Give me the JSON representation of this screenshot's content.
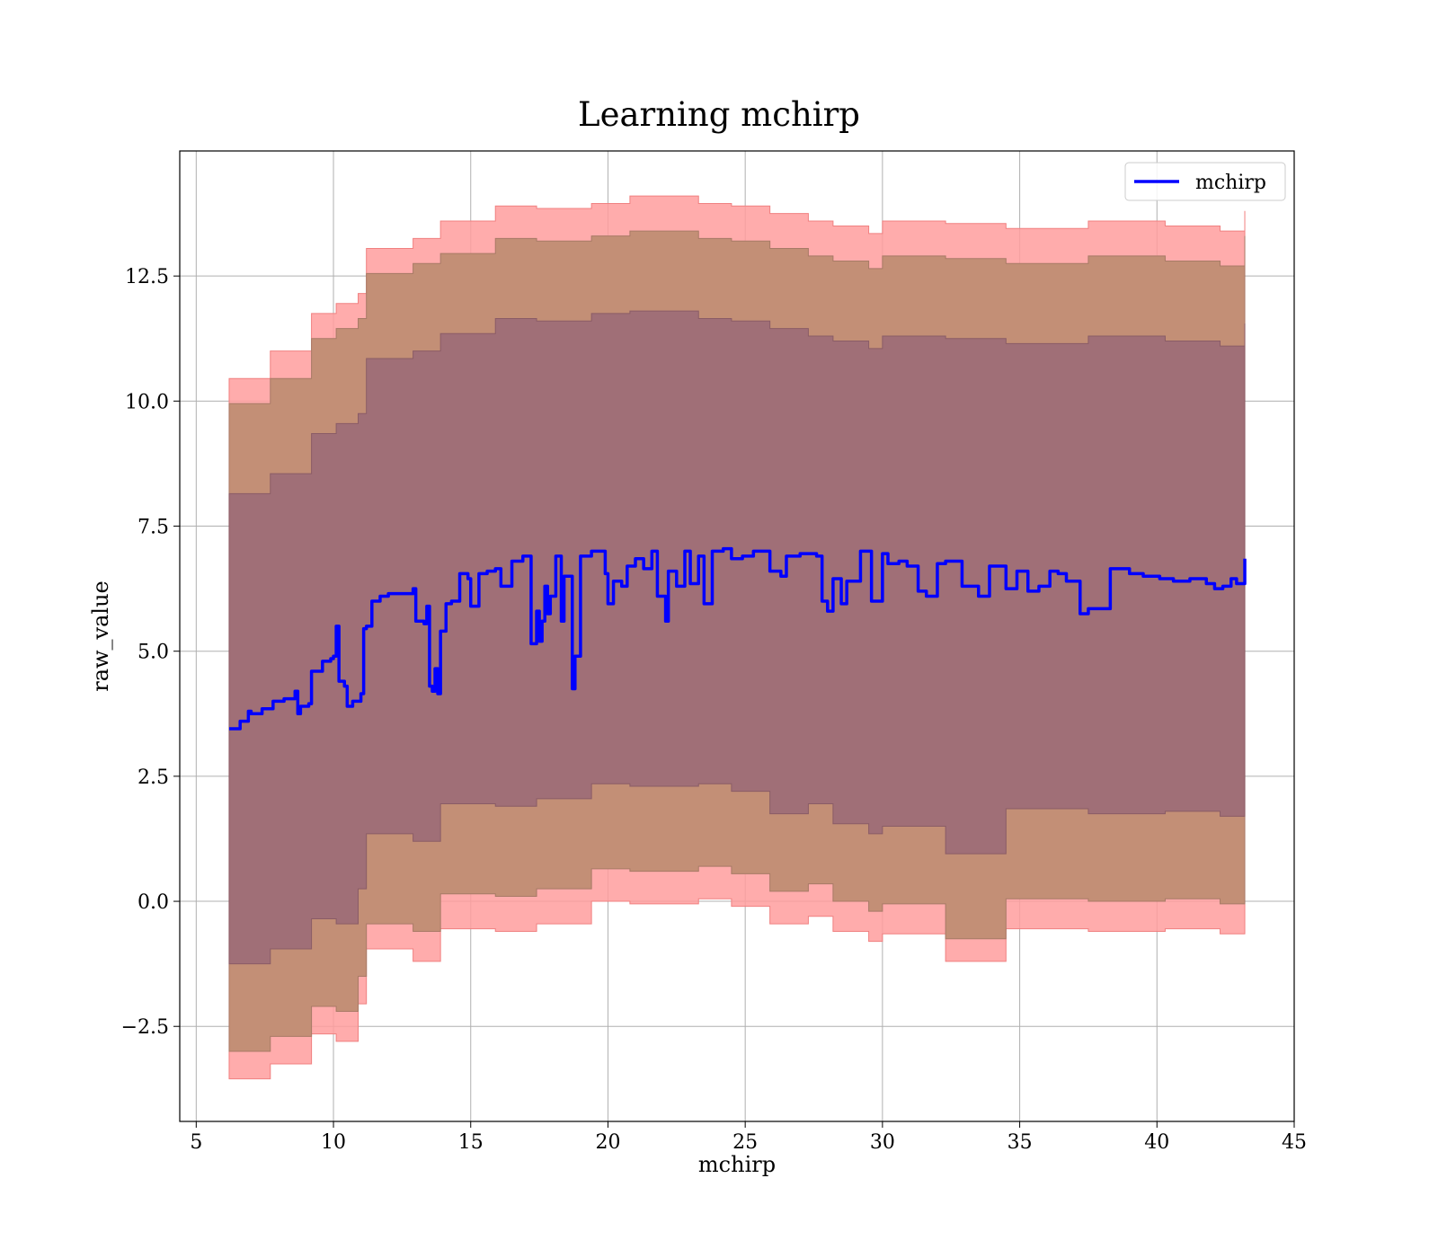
{
  "chart_data": {
    "type": "line",
    "title": "Learning mchirp",
    "xlabel": "mchirp",
    "ylabel": "raw_value",
    "xlim": [
      4.4,
      45
    ],
    "ylim": [
      -4.4,
      15.0
    ],
    "xticks": [
      5,
      10,
      15,
      20,
      25,
      30,
      35,
      40,
      45
    ],
    "xtick_labels": [
      "5",
      "10",
      "15",
      "20",
      "25",
      "30",
      "35",
      "40",
      "45"
    ],
    "yticks": [
      -2.5,
      0.0,
      2.5,
      5.0,
      7.5,
      10.0,
      12.5
    ],
    "ytick_labels": [
      "−2.5",
      "0.0",
      "2.5",
      "5.0",
      "7.5",
      "10.0",
      "12.5"
    ],
    "grid": true,
    "legend": {
      "position": "top-right",
      "entries": [
        "mchirp"
      ]
    },
    "colors": {
      "line": "#0000ff",
      "band_outer": "#ff9d9d",
      "band_middle": "#c38f76",
      "band_inner": "#a06f77"
    },
    "series": [
      {
        "name": "mchirp",
        "x": [
          6.2,
          6.6,
          6.9,
          7.0,
          7.4,
          7.8,
          8.2,
          8.6,
          8.7,
          8.8,
          9.1,
          9.2,
          9.6,
          9.9,
          10.0,
          10.1,
          10.2,
          10.4,
          10.5,
          10.7,
          11.0,
          11.1,
          11.2,
          11.4,
          11.7,
          12.0,
          12.4,
          12.9,
          13.0,
          13.3,
          13.4,
          13.5,
          13.6,
          13.7,
          13.8,
          13.9,
          14.1,
          14.3,
          14.5,
          14.6,
          14.9,
          15.0,
          15.3,
          15.6,
          15.9,
          16.1,
          16.5,
          16.9,
          17.2,
          17.4,
          17.5,
          17.6,
          17.7,
          17.8,
          17.9,
          18.1,
          18.3,
          18.4,
          18.7,
          18.8,
          19.0,
          19.4,
          19.9,
          20.0,
          20.2,
          20.5,
          20.7,
          21.0,
          21.3,
          21.6,
          21.8,
          22.1,
          22.2,
          22.5,
          22.8,
          23.0,
          23.3,
          23.5,
          23.8,
          24.2,
          24.5,
          24.9,
          25.3,
          25.9,
          26.3,
          26.5,
          27.0,
          27.6,
          27.8,
          28.0,
          28.2,
          28.5,
          28.7,
          29.2,
          29.6,
          30.0,
          30.2,
          30.6,
          30.9,
          31.3,
          31.6,
          32.0,
          32.3,
          32.9,
          33.5,
          33.9,
          34.5,
          34.9,
          35.3,
          35.7,
          36.1,
          36.4,
          36.7,
          37.2,
          37.5,
          38.3,
          39.0,
          39.5,
          40.1,
          40.6,
          41.2,
          41.8,
          42.1,
          42.4,
          42.7,
          42.9,
          43.2
        ],
        "values": [
          3.45,
          3.6,
          3.8,
          3.75,
          3.85,
          4.0,
          4.05,
          4.2,
          3.75,
          3.9,
          3.95,
          4.6,
          4.8,
          4.85,
          4.9,
          5.5,
          4.4,
          4.3,
          3.9,
          4.0,
          4.15,
          5.45,
          5.5,
          6.0,
          6.1,
          6.15,
          6.15,
          6.25,
          5.6,
          5.55,
          5.9,
          4.3,
          4.2,
          4.65,
          4.15,
          5.4,
          5.95,
          6.0,
          6.0,
          6.55,
          6.45,
          5.9,
          6.55,
          6.6,
          6.65,
          6.3,
          6.8,
          6.9,
          5.15,
          5.8,
          5.2,
          5.6,
          6.3,
          5.75,
          6.1,
          6.9,
          5.6,
          6.5,
          4.25,
          4.9,
          6.9,
          7.0,
          6.55,
          5.95,
          6.4,
          6.3,
          6.7,
          6.85,
          6.65,
          7.0,
          6.1,
          5.6,
          6.6,
          6.3,
          7.0,
          6.35,
          6.9,
          5.95,
          7.0,
          7.05,
          6.85,
          6.9,
          7.0,
          6.6,
          6.5,
          6.9,
          6.95,
          6.9,
          6.0,
          5.8,
          6.45,
          5.95,
          6.4,
          7.0,
          6.0,
          6.95,
          6.75,
          6.8,
          6.7,
          6.2,
          6.1,
          6.75,
          6.8,
          6.3,
          6.1,
          6.7,
          6.25,
          6.6,
          6.2,
          6.3,
          6.6,
          6.55,
          6.4,
          5.75,
          5.85,
          6.65,
          6.55,
          6.5,
          6.45,
          6.4,
          6.45,
          6.35,
          6.25,
          6.3,
          6.45,
          6.35,
          6.85
        ]
      }
    ],
    "bands": {
      "outer": {
        "upper": [
          10.45,
          11.0,
          11.75,
          11.95,
          12.15,
          13.05,
          13.25,
          13.6,
          13.9,
          13.85,
          13.95,
          14.1,
          13.95,
          13.9,
          13.75,
          13.6,
          13.5,
          13.35,
          13.6,
          13.55,
          13.45,
          13.6,
          13.5,
          13.4,
          13.8
        ],
        "lower": [
          -3.55,
          -3.25,
          -2.65,
          -2.8,
          -2.05,
          -0.95,
          -1.2,
          -0.55,
          -0.6,
          -0.45,
          0.0,
          -0.05,
          0.05,
          -0.1,
          -0.45,
          -0.3,
          -0.6,
          -0.8,
          -0.65,
          -1.2,
          -0.55,
          -0.6,
          -0.55,
          -0.65,
          -0.15
        ]
      },
      "middle": {
        "upper": [
          9.95,
          10.45,
          11.25,
          11.45,
          11.65,
          12.55,
          12.75,
          12.95,
          13.25,
          13.2,
          13.3,
          13.4,
          13.25,
          13.2,
          13.05,
          12.9,
          12.8,
          12.65,
          12.9,
          12.85,
          12.75,
          12.9,
          12.8,
          12.7,
          13.3
        ],
        "lower": [
          -3.0,
          -2.7,
          -2.1,
          -2.2,
          -1.5,
          -0.45,
          -0.6,
          0.15,
          0.1,
          0.25,
          0.65,
          0.6,
          0.7,
          0.55,
          0.2,
          0.35,
          0.0,
          -0.2,
          -0.05,
          -0.75,
          0.05,
          0.0,
          0.05,
          -0.05,
          0.4
        ]
      },
      "inner": {
        "upper": [
          8.15,
          8.55,
          9.35,
          9.55,
          9.75,
          10.85,
          11.0,
          11.35,
          11.65,
          11.6,
          11.75,
          11.8,
          11.65,
          11.6,
          11.45,
          11.3,
          11.2,
          11.05,
          11.3,
          11.25,
          11.15,
          11.3,
          11.2,
          11.1,
          11.55
        ],
        "lower": [
          -1.25,
          -0.95,
          -0.35,
          -0.45,
          0.25,
          1.35,
          1.2,
          1.95,
          1.9,
          2.05,
          2.35,
          2.3,
          2.35,
          2.2,
          1.75,
          1.95,
          1.55,
          1.35,
          1.5,
          0.95,
          1.85,
          1.75,
          1.8,
          1.7,
          2.1
        ]
      },
      "x": [
        6.2,
        7.7,
        9.2,
        10.1,
        10.9,
        11.2,
        12.9,
        13.9,
        15.9,
        17.4,
        19.4,
        20.8,
        23.3,
        24.5,
        25.9,
        27.3,
        28.2,
        29.5,
        30.0,
        32.3,
        34.5,
        37.5,
        40.3,
        42.3,
        43.2
      ]
    }
  }
}
